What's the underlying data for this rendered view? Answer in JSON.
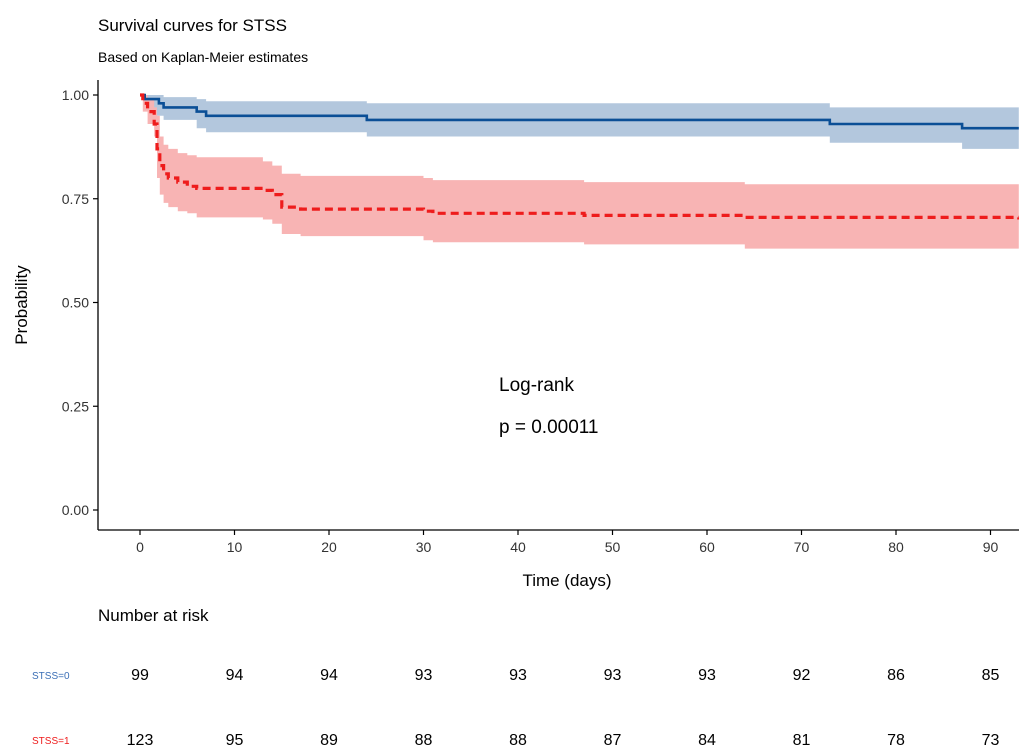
{
  "chart_data": {
    "type": "line",
    "title": "Survival curves for STSS",
    "subtitle": "Based on Kaplan-Meier estimates",
    "xlabel": "Time (days)",
    "ylabel": "Probability",
    "xlim": [
      -4,
      93
    ],
    "ylim": [
      0,
      1
    ],
    "x_ticks": [
      0,
      10,
      20,
      30,
      40,
      50,
      60,
      70,
      80,
      90
    ],
    "y_ticks": [
      0,
      0.25,
      0.5,
      0.75,
      1.0
    ],
    "y_tick_labels": [
      "0.00",
      "0.25",
      "0.50",
      "0.75",
      "1.00"
    ],
    "grid": false,
    "annotation": [
      "Log-rank",
      "p = 0.00011"
    ],
    "series": [
      {
        "strata_label": "STSS=0",
        "color": "#0b4f96",
        "band_color": "#b3c7dd",
        "line_style": "solid",
        "steps": [
          [
            0,
            1.0
          ],
          [
            0.5,
            0.99
          ],
          [
            2,
            0.98
          ],
          [
            2.5,
            0.97
          ],
          [
            6,
            0.96
          ],
          [
            7,
            0.95
          ],
          [
            24,
            0.94
          ],
          [
            73,
            0.93
          ],
          [
            87,
            0.92
          ],
          [
            93,
            0.92
          ]
        ],
        "lower": [
          [
            0,
            1.0
          ],
          [
            0.5,
            0.97
          ],
          [
            1.5,
            0.95
          ],
          [
            2.5,
            0.94
          ],
          [
            6,
            0.92
          ],
          [
            7,
            0.91
          ],
          [
            24,
            0.9
          ],
          [
            73,
            0.885
          ],
          [
            87,
            0.87
          ],
          [
            93,
            0.87
          ]
        ],
        "upper": [
          [
            0,
            1.0
          ],
          [
            0.5,
            1.0
          ],
          [
            2.5,
            0.995
          ],
          [
            6,
            0.99
          ],
          [
            7,
            0.985
          ],
          [
            24,
            0.98
          ],
          [
            73,
            0.97
          ],
          [
            87,
            0.97
          ],
          [
            93,
            0.97
          ]
        ]
      },
      {
        "strata_label": "STSS=1",
        "color": "#ee1c1c",
        "band_color": "#f8b4b4",
        "line_style": "dashed",
        "steps": [
          [
            0,
            1.0
          ],
          [
            0.3,
            0.98
          ],
          [
            0.8,
            0.96
          ],
          [
            1.5,
            0.93
          ],
          [
            1.8,
            0.87
          ],
          [
            2.1,
            0.83
          ],
          [
            2.5,
            0.81
          ],
          [
            3,
            0.8
          ],
          [
            4,
            0.79
          ],
          [
            5,
            0.78
          ],
          [
            6,
            0.775
          ],
          [
            13,
            0.77
          ],
          [
            14,
            0.76
          ],
          [
            15,
            0.73
          ],
          [
            17,
            0.725
          ],
          [
            30,
            0.72
          ],
          [
            31,
            0.715
          ],
          [
            47,
            0.71
          ],
          [
            64,
            0.705
          ],
          [
            93,
            0.7
          ]
        ],
        "lower": [
          [
            0,
            1.0
          ],
          [
            0.3,
            0.96
          ],
          [
            0.8,
            0.93
          ],
          [
            1.5,
            0.9
          ],
          [
            1.8,
            0.8
          ],
          [
            2.1,
            0.76
          ],
          [
            2.5,
            0.74
          ],
          [
            3,
            0.73
          ],
          [
            4,
            0.72
          ],
          [
            5,
            0.715
          ],
          [
            6,
            0.705
          ],
          [
            13,
            0.7
          ],
          [
            14,
            0.69
          ],
          [
            15,
            0.665
          ],
          [
            17,
            0.66
          ],
          [
            30,
            0.65
          ],
          [
            31,
            0.645
          ],
          [
            47,
            0.64
          ],
          [
            64,
            0.63
          ],
          [
            93,
            0.63
          ]
        ],
        "upper": [
          [
            0,
            1.0
          ],
          [
            0.3,
            1.0
          ],
          [
            0.8,
            0.99
          ],
          [
            1.5,
            0.97
          ],
          [
            1.8,
            0.95
          ],
          [
            2.1,
            0.9
          ],
          [
            2.5,
            0.88
          ],
          [
            3,
            0.87
          ],
          [
            4,
            0.86
          ],
          [
            5,
            0.855
          ],
          [
            6,
            0.85
          ],
          [
            13,
            0.84
          ],
          [
            14,
            0.83
          ],
          [
            15,
            0.81
          ],
          [
            17,
            0.805
          ],
          [
            30,
            0.8
          ],
          [
            31,
            0.795
          ],
          [
            47,
            0.79
          ],
          [
            64,
            0.785
          ],
          [
            93,
            0.785
          ]
        ]
      }
    ]
  },
  "risk_table": {
    "title": "Number at risk",
    "times": [
      0,
      10,
      20,
      30,
      40,
      50,
      60,
      70,
      80,
      90
    ],
    "rows": [
      {
        "label": "STSS=0",
        "color": "#3b6fb6",
        "values": [
          99,
          94,
          94,
          93,
          93,
          93,
          93,
          92,
          86,
          85
        ]
      },
      {
        "label": "STSS=1",
        "color": "#ee1c1c",
        "values": [
          123,
          95,
          89,
          88,
          88,
          87,
          84,
          81,
          78,
          73
        ]
      }
    ]
  }
}
